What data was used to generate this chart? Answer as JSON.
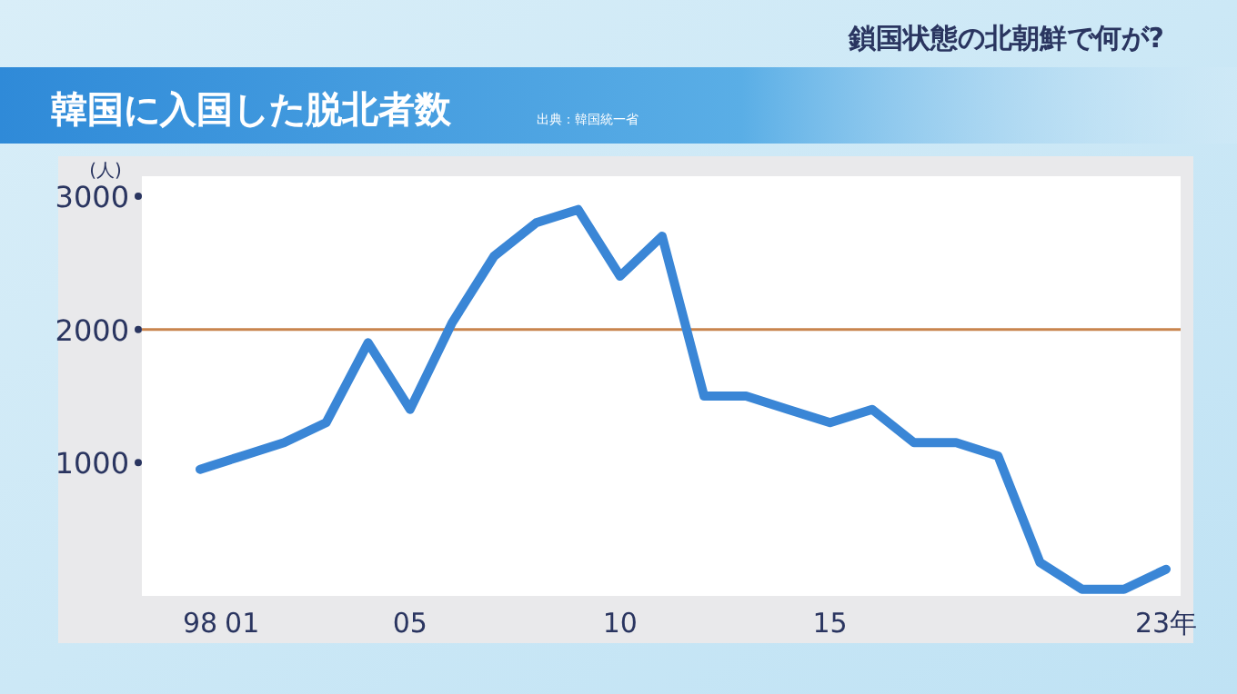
{
  "chart_data": {
    "type": "line",
    "title": "韓国に入国した脱北者数",
    "subtitle": "鎖国状態の北朝鮮で何が?",
    "annotations": [
      "出典：韓国統一省"
    ],
    "ylabel": "(人)",
    "categories": [
      "98",
      "01",
      null,
      null,
      null,
      "05",
      null,
      null,
      null,
      null,
      "10",
      null,
      null,
      null,
      null,
      "15",
      null,
      null,
      null,
      null,
      null,
      null,
      null,
      "23年"
    ],
    "series": [
      {
        "color": "#3a86d6",
        "values": [
          950,
          1050,
          1150,
          1300,
          1900,
          1400,
          2050,
          2550,
          2800,
          2900,
          2400,
          2700,
          1500,
          1500,
          1400,
          1300,
          1400,
          1150,
          1150,
          1050,
          250,
          50,
          50,
          200
        ]
      }
    ],
    "ylim": [
      0,
      3150
    ],
    "yticks": [
      1000,
      2000,
      3000
    ],
    "ref_lines": [
      {
        "axis": "y",
        "value": 2000,
        "color": "#c8844e"
      }
    ],
    "grid": false
  }
}
